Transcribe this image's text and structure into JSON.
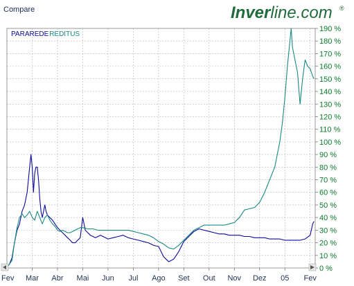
{
  "header": {
    "compare_label": "Compare",
    "brand_bold": "Inver",
    "brand_rest": "line.com",
    "brand_mark": "®"
  },
  "colors": {
    "brand_green": "#1f6b3a",
    "series1": "#0a0a9c",
    "series2": "#168a80",
    "grid": "#b5b5b5",
    "axis_text": "#0a7a2a",
    "x_axis_text": "#223355"
  },
  "chart_data": {
    "type": "line",
    "ylim": [
      0,
      190
    ],
    "y_ticks": [
      0,
      10,
      20,
      30,
      40,
      50,
      60,
      70,
      80,
      90,
      100,
      110,
      120,
      130,
      140,
      150,
      160,
      170,
      180,
      190
    ],
    "y_tick_labels": [
      "0 %",
      "10 %",
      "20 %",
      "30 %",
      "40 %",
      "50 %",
      "60 %",
      "70 %",
      "80 %",
      "90 %",
      "100 %",
      "110 %",
      "120 %",
      "130 %",
      "140 %",
      "150 %",
      "160 %",
      "170 %",
      "180 %",
      "190 %"
    ],
    "x_tick_labels": [
      "Fev",
      "Mar",
      "Abr",
      "Mai",
      "Jun",
      "Jul",
      "Ago",
      "Set",
      "Out",
      "Nov",
      "Dez",
      "05",
      "Fev"
    ],
    "x_ticks": [
      0,
      1,
      2,
      3,
      4,
      5,
      6,
      7,
      8,
      9,
      10,
      11,
      12
    ],
    "xlim": [
      0,
      12.2
    ],
    "grid": true,
    "legend_position": "top-left",
    "series": [
      {
        "name": "PARAREDE",
        "color": "#0a0a9c",
        "points": [
          [
            0,
            0
          ],
          [
            0.1,
            3
          ],
          [
            0.2,
            8
          ],
          [
            0.3,
            20
          ],
          [
            0.4,
            30
          ],
          [
            0.5,
            35
          ],
          [
            0.6,
            45
          ],
          [
            0.7,
            50
          ],
          [
            0.8,
            60
          ],
          [
            0.9,
            80
          ],
          [
            0.95,
            90
          ],
          [
            1.0,
            80
          ],
          [
            1.05,
            60
          ],
          [
            1.1,
            75
          ],
          [
            1.15,
            80
          ],
          [
            1.2,
            80
          ],
          [
            1.25,
            70
          ],
          [
            1.3,
            55
          ],
          [
            1.35,
            45
          ],
          [
            1.4,
            40
          ],
          [
            1.5,
            50
          ],
          [
            1.55,
            45
          ],
          [
            1.6,
            42
          ],
          [
            1.7,
            40
          ],
          [
            1.8,
            38
          ],
          [
            1.9,
            35
          ],
          [
            2.0,
            32
          ],
          [
            2.1,
            30
          ],
          [
            2.2,
            28
          ],
          [
            2.3,
            26
          ],
          [
            2.4,
            24
          ],
          [
            2.5,
            22
          ],
          [
            2.6,
            20
          ],
          [
            2.7,
            20
          ],
          [
            2.8,
            22
          ],
          [
            2.9,
            24
          ],
          [
            3.0,
            40
          ],
          [
            3.05,
            35
          ],
          [
            3.1,
            30
          ],
          [
            3.2,
            28
          ],
          [
            3.3,
            26
          ],
          [
            3.4,
            25
          ],
          [
            3.5,
            24
          ],
          [
            3.6,
            25
          ],
          [
            3.7,
            26
          ],
          [
            3.8,
            25
          ],
          [
            3.9,
            24
          ],
          [
            4.0,
            23
          ],
          [
            4.2,
            24
          ],
          [
            4.4,
            25
          ],
          [
            4.6,
            26
          ],
          [
            4.8,
            24
          ],
          [
            5.0,
            23
          ],
          [
            5.2,
            22
          ],
          [
            5.4,
            21
          ],
          [
            5.6,
            20
          ],
          [
            5.8,
            18
          ],
          [
            6.0,
            17
          ],
          [
            6.1,
            13
          ],
          [
            6.2,
            9
          ],
          [
            6.3,
            7
          ],
          [
            6.4,
            5
          ],
          [
            6.5,
            6
          ],
          [
            6.6,
            7
          ],
          [
            6.7,
            10
          ],
          [
            6.8,
            13
          ],
          [
            6.9,
            17
          ],
          [
            7.0,
            21
          ],
          [
            7.1,
            23
          ],
          [
            7.2,
            25
          ],
          [
            7.3,
            27
          ],
          [
            7.4,
            29
          ],
          [
            7.5,
            30
          ],
          [
            7.6,
            31
          ],
          [
            7.8,
            30
          ],
          [
            8.0,
            29
          ],
          [
            8.2,
            28
          ],
          [
            8.4,
            27
          ],
          [
            8.6,
            27
          ],
          [
            8.8,
            26
          ],
          [
            9.0,
            26
          ],
          [
            9.2,
            26
          ],
          [
            9.4,
            25
          ],
          [
            9.6,
            25
          ],
          [
            9.8,
            24
          ],
          [
            10.0,
            24
          ],
          [
            10.2,
            24
          ],
          [
            10.4,
            23
          ],
          [
            10.6,
            23
          ],
          [
            10.8,
            23
          ],
          [
            11.0,
            22
          ],
          [
            11.2,
            22
          ],
          [
            11.4,
            22
          ],
          [
            11.6,
            22
          ],
          [
            11.8,
            23
          ],
          [
            12.0,
            26
          ],
          [
            12.1,
            35
          ],
          [
            12.15,
            37
          ]
        ]
      },
      {
        "name": "REDITUS",
        "color": "#168a80",
        "points": [
          [
            0,
            0
          ],
          [
            0.1,
            3
          ],
          [
            0.2,
            6
          ],
          [
            0.3,
            20
          ],
          [
            0.4,
            32
          ],
          [
            0.5,
            40
          ],
          [
            0.6,
            43
          ],
          [
            0.7,
            40
          ],
          [
            0.8,
            42
          ],
          [
            0.9,
            45
          ],
          [
            1.0,
            40
          ],
          [
            1.1,
            38
          ],
          [
            1.2,
            45
          ],
          [
            1.3,
            40
          ],
          [
            1.4,
            35
          ],
          [
            1.5,
            40
          ],
          [
            1.6,
            42
          ],
          [
            1.7,
            38
          ],
          [
            1.8,
            35
          ],
          [
            1.9,
            33
          ],
          [
            2.0,
            30
          ],
          [
            2.1,
            29
          ],
          [
            2.2,
            30
          ],
          [
            2.3,
            29
          ],
          [
            2.4,
            28
          ],
          [
            2.5,
            28
          ],
          [
            2.6,
            29
          ],
          [
            2.7,
            30
          ],
          [
            2.8,
            31
          ],
          [
            2.9,
            32
          ],
          [
            3.0,
            32
          ],
          [
            3.2,
            31
          ],
          [
            3.4,
            31
          ],
          [
            3.6,
            30
          ],
          [
            3.8,
            30
          ],
          [
            4.0,
            30
          ],
          [
            4.2,
            30
          ],
          [
            4.4,
            30
          ],
          [
            4.6,
            30
          ],
          [
            4.8,
            30
          ],
          [
            5.0,
            29
          ],
          [
            5.2,
            28
          ],
          [
            5.4,
            27
          ],
          [
            5.6,
            26
          ],
          [
            5.8,
            24
          ],
          [
            6.0,
            21
          ],
          [
            6.2,
            19
          ],
          [
            6.4,
            16
          ],
          [
            6.6,
            15
          ],
          [
            6.8,
            18
          ],
          [
            7.0,
            22
          ],
          [
            7.2,
            26
          ],
          [
            7.4,
            30
          ],
          [
            7.6,
            32
          ],
          [
            7.8,
            34
          ],
          [
            8.0,
            34
          ],
          [
            8.2,
            34
          ],
          [
            8.4,
            34
          ],
          [
            8.6,
            34
          ],
          [
            8.8,
            35
          ],
          [
            9.0,
            36
          ],
          [
            9.2,
            40
          ],
          [
            9.4,
            46
          ],
          [
            9.6,
            47
          ],
          [
            9.8,
            48
          ],
          [
            10.0,
            52
          ],
          [
            10.2,
            60
          ],
          [
            10.4,
            70
          ],
          [
            10.6,
            80
          ],
          [
            10.8,
            100
          ],
          [
            10.9,
            115
          ],
          [
            11.0,
            135
          ],
          [
            11.1,
            160
          ],
          [
            11.2,
            180
          ],
          [
            11.25,
            190
          ],
          [
            11.3,
            175
          ],
          [
            11.4,
            165
          ],
          [
            11.5,
            155
          ],
          [
            11.6,
            130
          ],
          [
            11.7,
            150
          ],
          [
            11.8,
            165
          ],
          [
            11.9,
            160
          ],
          [
            12.0,
            158
          ],
          [
            12.1,
            152
          ],
          [
            12.15,
            150
          ]
        ]
      }
    ]
  }
}
